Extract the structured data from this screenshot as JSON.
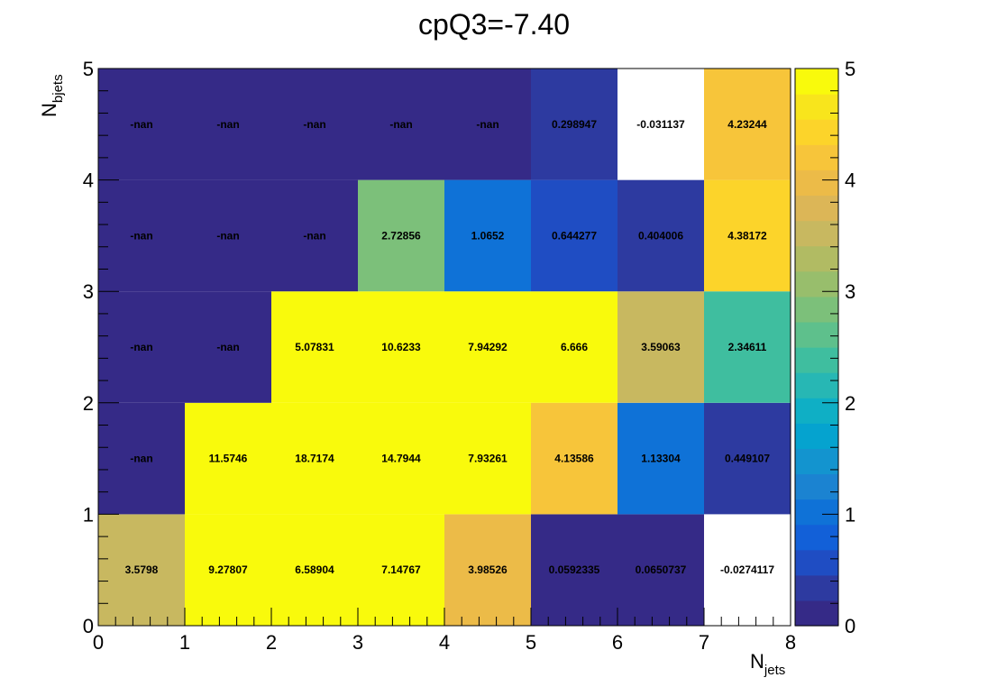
{
  "chart_data": {
    "type": "heatmap",
    "title": "cpQ3=-7.40",
    "xlabel": {
      "main": "N",
      "sub": "jets"
    },
    "ylabel": {
      "main": "N",
      "sub": "bjets"
    },
    "xlim": [
      0,
      8
    ],
    "ylim": [
      0,
      5
    ],
    "x_ticks": [
      "0",
      "1",
      "2",
      "3",
      "4",
      "5",
      "6",
      "7",
      "8"
    ],
    "y_ticks": [
      "0",
      "1",
      "2",
      "3",
      "4",
      "5"
    ],
    "zlim": [
      0,
      5
    ],
    "z_ticks": [
      "0",
      "1",
      "2",
      "3",
      "4",
      "5"
    ],
    "palette": [
      "#352a87",
      "#2d3aa0",
      "#1f4dc3",
      "#1260d8",
      "#0f72d7",
      "#1b83d1",
      "#1394cf",
      "#05a3cf",
      "#0fafc5",
      "#27b7b4",
      "#3fbe9f",
      "#5ec08c",
      "#7cc07a",
      "#98be6c",
      "#b1bb63",
      "#c8b860",
      "#dcb657",
      "#ecbb48",
      "#f7c53a",
      "#fcd42a",
      "#f8e51c",
      "#f9fa0c"
    ],
    "cells": [
      {
        "x": 0.5,
        "y": 0.5,
        "value": 3.5798,
        "label": "3.5798"
      },
      {
        "x": 1.5,
        "y": 0.5,
        "value": 9.27807,
        "label": "9.27807"
      },
      {
        "x": 2.5,
        "y": 0.5,
        "value": 6.58904,
        "label": "6.58904"
      },
      {
        "x": 3.5,
        "y": 0.5,
        "value": 7.14767,
        "label": "7.14767"
      },
      {
        "x": 4.5,
        "y": 0.5,
        "value": 3.98526,
        "label": "3.98526"
      },
      {
        "x": 5.5,
        "y": 0.5,
        "value": 0.0592335,
        "label": "0.0592335"
      },
      {
        "x": 6.5,
        "y": 0.5,
        "value": 0.0650737,
        "label": "0.0650737"
      },
      {
        "x": 7.5,
        "y": 0.5,
        "value": -0.0274117,
        "label": "-0.0274117"
      },
      {
        "x": 0.5,
        "y": 1.5,
        "value": null,
        "label": "-nan"
      },
      {
        "x": 1.5,
        "y": 1.5,
        "value": 11.5746,
        "label": "11.5746"
      },
      {
        "x": 2.5,
        "y": 1.5,
        "value": 18.7174,
        "label": "18.7174"
      },
      {
        "x": 3.5,
        "y": 1.5,
        "value": 14.7944,
        "label": "14.7944"
      },
      {
        "x": 4.5,
        "y": 1.5,
        "value": 7.93261,
        "label": "7.93261"
      },
      {
        "x": 5.5,
        "y": 1.5,
        "value": 4.13586,
        "label": "4.13586"
      },
      {
        "x": 6.5,
        "y": 1.5,
        "value": 1.13304,
        "label": "1.13304"
      },
      {
        "x": 7.5,
        "y": 1.5,
        "value": 0.449107,
        "label": "0.449107"
      },
      {
        "x": 0.5,
        "y": 2.5,
        "value": null,
        "label": "-nan"
      },
      {
        "x": 1.5,
        "y": 2.5,
        "value": null,
        "label": "-nan"
      },
      {
        "x": 2.5,
        "y": 2.5,
        "value": 5.07831,
        "label": "5.07831"
      },
      {
        "x": 3.5,
        "y": 2.5,
        "value": 10.6233,
        "label": "10.6233"
      },
      {
        "x": 4.5,
        "y": 2.5,
        "value": 7.94292,
        "label": "7.94292"
      },
      {
        "x": 5.5,
        "y": 2.5,
        "value": 6.666,
        "label": "6.666"
      },
      {
        "x": 6.5,
        "y": 2.5,
        "value": 3.59063,
        "label": "3.59063"
      },
      {
        "x": 7.5,
        "y": 2.5,
        "value": 2.34611,
        "label": "2.34611"
      },
      {
        "x": 0.5,
        "y": 3.5,
        "value": null,
        "label": "-nan"
      },
      {
        "x": 1.5,
        "y": 3.5,
        "value": null,
        "label": "-nan"
      },
      {
        "x": 2.5,
        "y": 3.5,
        "value": null,
        "label": "-nan"
      },
      {
        "x": 3.5,
        "y": 3.5,
        "value": 2.72856,
        "label": "2.72856"
      },
      {
        "x": 4.5,
        "y": 3.5,
        "value": 1.0652,
        "label": "1.0652"
      },
      {
        "x": 5.5,
        "y": 3.5,
        "value": 0.644277,
        "label": "0.644277"
      },
      {
        "x": 6.5,
        "y": 3.5,
        "value": 0.404006,
        "label": "0.404006"
      },
      {
        "x": 7.5,
        "y": 3.5,
        "value": 4.38172,
        "label": "4.38172"
      },
      {
        "x": 0.5,
        "y": 4.5,
        "value": null,
        "label": "-nan"
      },
      {
        "x": 1.5,
        "y": 4.5,
        "value": null,
        "label": "-nan"
      },
      {
        "x": 2.5,
        "y": 4.5,
        "value": null,
        "label": "-nan"
      },
      {
        "x": 3.5,
        "y": 4.5,
        "value": null,
        "label": "-nan"
      },
      {
        "x": 4.5,
        "y": 4.5,
        "value": null,
        "label": "-nan"
      },
      {
        "x": 5.5,
        "y": 4.5,
        "value": 0.298947,
        "label": "0.298947"
      },
      {
        "x": 6.5,
        "y": 4.5,
        "value": -0.031137,
        "label": "-0.031137"
      },
      {
        "x": 7.5,
        "y": 4.5,
        "value": 4.23244,
        "label": "4.23244"
      }
    ]
  }
}
